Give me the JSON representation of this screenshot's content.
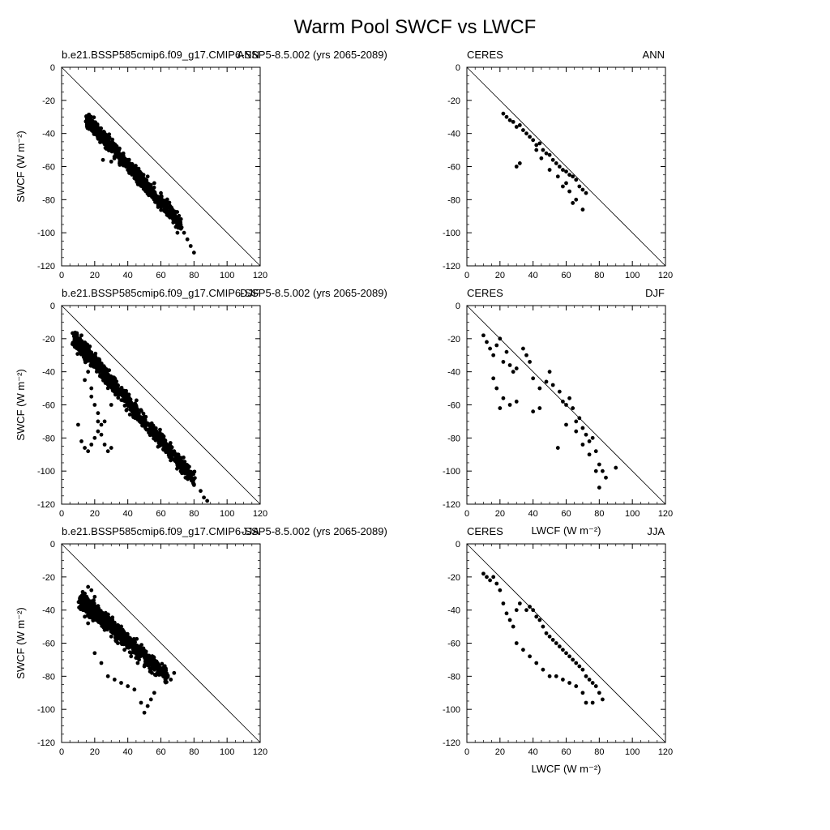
{
  "figure": {
    "title": "Warm Pool SWCF vs LWCF"
  },
  "chart_data": [
    {
      "type": "scatter",
      "left_title": "b.e21.BSSP585cmip6.f09_g17.CMIP6-SSP5-8.5.002 (yrs 2065-2089)",
      "right_title": "ANN",
      "xlabel": "",
      "ylabel": "SWCF (W m⁻²)",
      "xlim": [
        0,
        120
      ],
      "ylim": [
        -120,
        0
      ],
      "xticks": [
        0,
        20,
        40,
        60,
        80,
        100,
        120
      ],
      "yticks": [
        0,
        -20,
        -40,
        -60,
        -80,
        -100,
        -120
      ],
      "reference_line": [
        [
          0,
          0
        ],
        [
          120,
          -120
        ]
      ],
      "cloud": {
        "x_start": 16,
        "y_start": -32,
        "x_end": 72,
        "y_end": -95,
        "spread": 6
      },
      "x": [
        16,
        20,
        24,
        28,
        32,
        36,
        40,
        44,
        48,
        52,
        56,
        60,
        64,
        68,
        72,
        74,
        76,
        78,
        80,
        25,
        30,
        35,
        40,
        45,
        50,
        55,
        60,
        70
      ],
      "y": [
        -32,
        -36,
        -42,
        -46,
        -50,
        -53,
        -56,
        -60,
        -64,
        -66,
        -70,
        -76,
        -82,
        -88,
        -95,
        -100,
        -104,
        -108,
        -112,
        -56,
        -57,
        -58,
        -62,
        -66,
        -72,
        -76,
        -82,
        -100
      ]
    },
    {
      "type": "scatter",
      "left_title": "CERES",
      "right_title": "ANN",
      "xlabel": "",
      "ylabel": "",
      "xlim": [
        0,
        120
      ],
      "ylim": [
        -120,
        0
      ],
      "xticks": [
        0,
        20,
        40,
        60,
        80,
        100,
        120
      ],
      "yticks": [
        0,
        -20,
        -40,
        -60,
        -80,
        -100,
        -120
      ],
      "reference_line": [
        [
          0,
          0
        ],
        [
          120,
          -120
        ]
      ],
      "x": [
        22,
        24,
        26,
        28,
        30,
        32,
        34,
        36,
        38,
        40,
        42,
        44,
        46,
        48,
        50,
        52,
        54,
        56,
        58,
        60,
        62,
        64,
        66,
        68,
        70,
        72,
        30,
        32,
        42,
        45,
        50,
        55,
        60,
        62,
        66,
        70,
        58,
        64
      ],
      "y": [
        -28,
        -30,
        -32,
        -33,
        -36,
        -35,
        -38,
        -40,
        -42,
        -44,
        -47,
        -46,
        -50,
        -52,
        -53,
        -56,
        -58,
        -60,
        -62,
        -63,
        -65,
        -66,
        -68,
        -72,
        -74,
        -76,
        -60,
        -58,
        -50,
        -55,
        -62,
        -66,
        -70,
        -75,
        -80,
        -86,
        -72,
        -82
      ]
    },
    {
      "type": "scatter",
      "left_title": "b.e21.BSSP585cmip6.f09_g17.CMIP6-SSP5-8.5.002 (yrs 2065-2089)",
      "right_title": "DJF",
      "xlabel": "",
      "ylabel": "SWCF (W m⁻²)",
      "xlim": [
        0,
        120
      ],
      "ylim": [
        -120,
        0
      ],
      "xticks": [
        0,
        20,
        40,
        60,
        80,
        100,
        120
      ],
      "yticks": [
        0,
        -20,
        -40,
        -60,
        -80,
        -100,
        -120
      ],
      "reference_line": [
        [
          0,
          0
        ],
        [
          120,
          -120
        ]
      ],
      "cloud": {
        "x_start": 8,
        "y_start": -20,
        "x_end": 80,
        "y_end": -105,
        "spread": 7
      },
      "x": [
        8,
        10,
        12,
        14,
        16,
        18,
        20,
        22,
        24,
        26,
        28,
        30,
        10,
        12,
        14,
        16,
        18,
        20,
        22,
        24,
        14,
        18,
        22,
        26,
        30,
        34,
        60,
        64,
        68,
        72,
        76,
        80,
        84,
        86,
        88
      ],
      "y": [
        -25,
        -20,
        -18,
        -30,
        -40,
        -50,
        -60,
        -70,
        -78,
        -84,
        -88,
        -86,
        -72,
        -82,
        -86,
        -88,
        -84,
        -80,
        -76,
        -72,
        -45,
        -55,
        -65,
        -70,
        -60,
        -50,
        -80,
        -85,
        -88,
        -92,
        -100,
        -108,
        -112,
        -116,
        -118
      ]
    },
    {
      "type": "scatter",
      "left_title": "CERES",
      "right_title": "DJF",
      "xlabel": "LWCF (W m⁻²)",
      "ylabel": "",
      "xlim": [
        0,
        120
      ],
      "ylim": [
        -120,
        0
      ],
      "xticks": [
        0,
        20,
        40,
        60,
        80,
        100,
        120
      ],
      "yticks": [
        0,
        -20,
        -40,
        -60,
        -80,
        -100,
        -120
      ],
      "reference_line": [
        [
          0,
          0
        ],
        [
          120,
          -120
        ]
      ],
      "x": [
        10,
        12,
        14,
        16,
        18,
        20,
        22,
        24,
        26,
        28,
        30,
        34,
        36,
        38,
        40,
        44,
        48,
        50,
        52,
        56,
        58,
        60,
        62,
        64,
        66,
        68,
        70,
        72,
        74,
        76,
        78,
        80,
        82,
        84,
        90,
        16,
        18,
        20,
        22,
        26,
        30,
        40,
        44,
        55,
        60,
        66,
        70,
        74,
        78,
        80
      ],
      "y": [
        -18,
        -22,
        -26,
        -30,
        -24,
        -20,
        -34,
        -28,
        -36,
        -40,
        -38,
        -26,
        -30,
        -34,
        -44,
        -50,
        -46,
        -40,
        -48,
        -52,
        -58,
        -60,
        -56,
        -62,
        -70,
        -68,
        -74,
        -78,
        -82,
        -80,
        -88,
        -96,
        -100,
        -104,
        -98,
        -44,
        -50,
        -62,
        -56,
        -60,
        -58,
        -64,
        -62,
        -86,
        -72,
        -76,
        -84,
        -90,
        -100,
        -110
      ]
    },
    {
      "type": "scatter",
      "left_title": "b.e21.BSSP585cmip6.f09_g17.CMIP6-SSP5-8.5.002 (yrs 2065-2089)",
      "right_title": "JJA",
      "xlabel": "",
      "ylabel": "SWCF (W m⁻²)",
      "xlim": [
        0,
        120
      ],
      "ylim": [
        -120,
        0
      ],
      "xticks": [
        0,
        20,
        40,
        60,
        80,
        100,
        120
      ],
      "yticks": [
        0,
        -20,
        -40,
        -60,
        -80,
        -100,
        -120
      ],
      "reference_line": [
        [
          0,
          0
        ],
        [
          120,
          -120
        ]
      ],
      "cloud": {
        "x_start": 12,
        "y_start": -34,
        "x_end": 64,
        "y_end": -80,
        "spread": 7
      },
      "x": [
        12,
        14,
        16,
        18,
        20,
        22,
        24,
        26,
        30,
        34,
        38,
        42,
        46,
        50,
        54,
        58,
        62,
        66,
        68,
        48,
        50,
        52,
        54,
        56,
        28,
        32,
        36,
        40,
        44,
        20,
        24,
        14,
        16
      ],
      "y": [
        -36,
        -30,
        -26,
        -28,
        -32,
        -40,
        -46,
        -52,
        -56,
        -60,
        -64,
        -68,
        -72,
        -74,
        -76,
        -78,
        -80,
        -82,
        -78,
        -96,
        -102,
        -98,
        -94,
        -90,
        -80,
        -82,
        -84,
        -86,
        -88,
        -66,
        -72,
        -44,
        -48
      ]
    },
    {
      "type": "scatter",
      "left_title": "CERES",
      "right_title": "JJA",
      "xlabel": "LWCF (W m⁻²)",
      "ylabel": "",
      "xlim": [
        0,
        120
      ],
      "ylim": [
        -120,
        0
      ],
      "xticks": [
        0,
        20,
        40,
        60,
        80,
        100,
        120
      ],
      "yticks": [
        0,
        -20,
        -40,
        -60,
        -80,
        -100,
        -120
      ],
      "reference_line": [
        [
          0,
          0
        ],
        [
          120,
          -120
        ]
      ],
      "x": [
        10,
        12,
        14,
        16,
        18,
        20,
        22,
        24,
        26,
        28,
        30,
        32,
        36,
        38,
        40,
        42,
        44,
        46,
        48,
        50,
        52,
        54,
        56,
        58,
        60,
        62,
        64,
        66,
        68,
        70,
        72,
        74,
        76,
        78,
        80,
        82,
        30,
        34,
        38,
        42,
        46,
        50,
        54,
        58,
        62,
        66,
        70,
        72,
        76
      ],
      "y": [
        -18,
        -20,
        -22,
        -20,
        -24,
        -28,
        -36,
        -42,
        -46,
        -50,
        -40,
        -36,
        -40,
        -38,
        -40,
        -44,
        -46,
        -50,
        -54,
        -56,
        -58,
        -60,
        -62,
        -64,
        -66,
        -68,
        -70,
        -72,
        -74,
        -76,
        -80,
        -82,
        -84,
        -86,
        -90,
        -94,
        -60,
        -64,
        -68,
        -72,
        -76,
        -80,
        -80,
        -82,
        -84,
        -86,
        -90,
        -96,
        -96
      ]
    }
  ]
}
